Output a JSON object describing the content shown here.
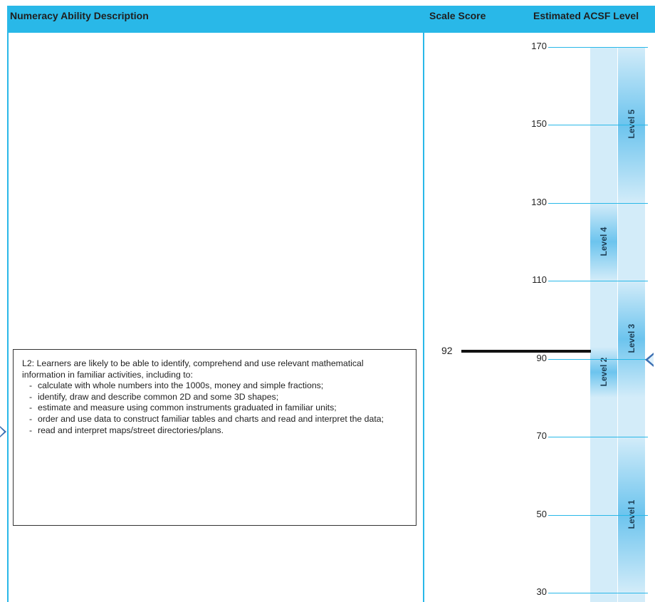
{
  "header": {
    "col1": "Numeracy Ability Description",
    "col2": "Scale Score",
    "col3": "Estimated ACSF Level"
  },
  "score": {
    "value": "92",
    "numeric": 92
  },
  "description": {
    "intro": "L2: Learners are likely to be able to identify, comprehend and use relevant mathematical information in familiar activities, including to:",
    "items": [
      "calculate with whole numbers into the 1000s, money and simple fractions;",
      "identify, draw and describe common 2D and some 3D shapes;",
      "estimate and measure using common instruments graduated in familiar units;",
      "order and use data to construct familiar tables and charts and read and interpret the data;",
      "read and interpret maps/street directories/plans."
    ]
  },
  "scale": {
    "ticks": [
      "170",
      "150",
      "130",
      "110",
      "90",
      "70",
      "50",
      "30"
    ],
    "range": [
      30,
      170
    ]
  },
  "levels": [
    {
      "label": "Level 5",
      "column": "right",
      "from": 130,
      "to": 170
    },
    {
      "label": "Level 4",
      "column": "left",
      "from": 110,
      "to": 130
    },
    {
      "label": "Level 3",
      "column": "right",
      "from": 80,
      "to": 110
    },
    {
      "label": "Level 2",
      "column": "left",
      "from": 80,
      "to": 93
    },
    {
      "label": "Level 1",
      "column": "right",
      "from": 30,
      "to": 70
    }
  ],
  "colors": {
    "header": "#29b8e8",
    "lines": "#29b8e8",
    "band_light": "#d3ecf9",
    "band_dark": "#6cc4ee",
    "arrow": "#3b6fb2"
  }
}
